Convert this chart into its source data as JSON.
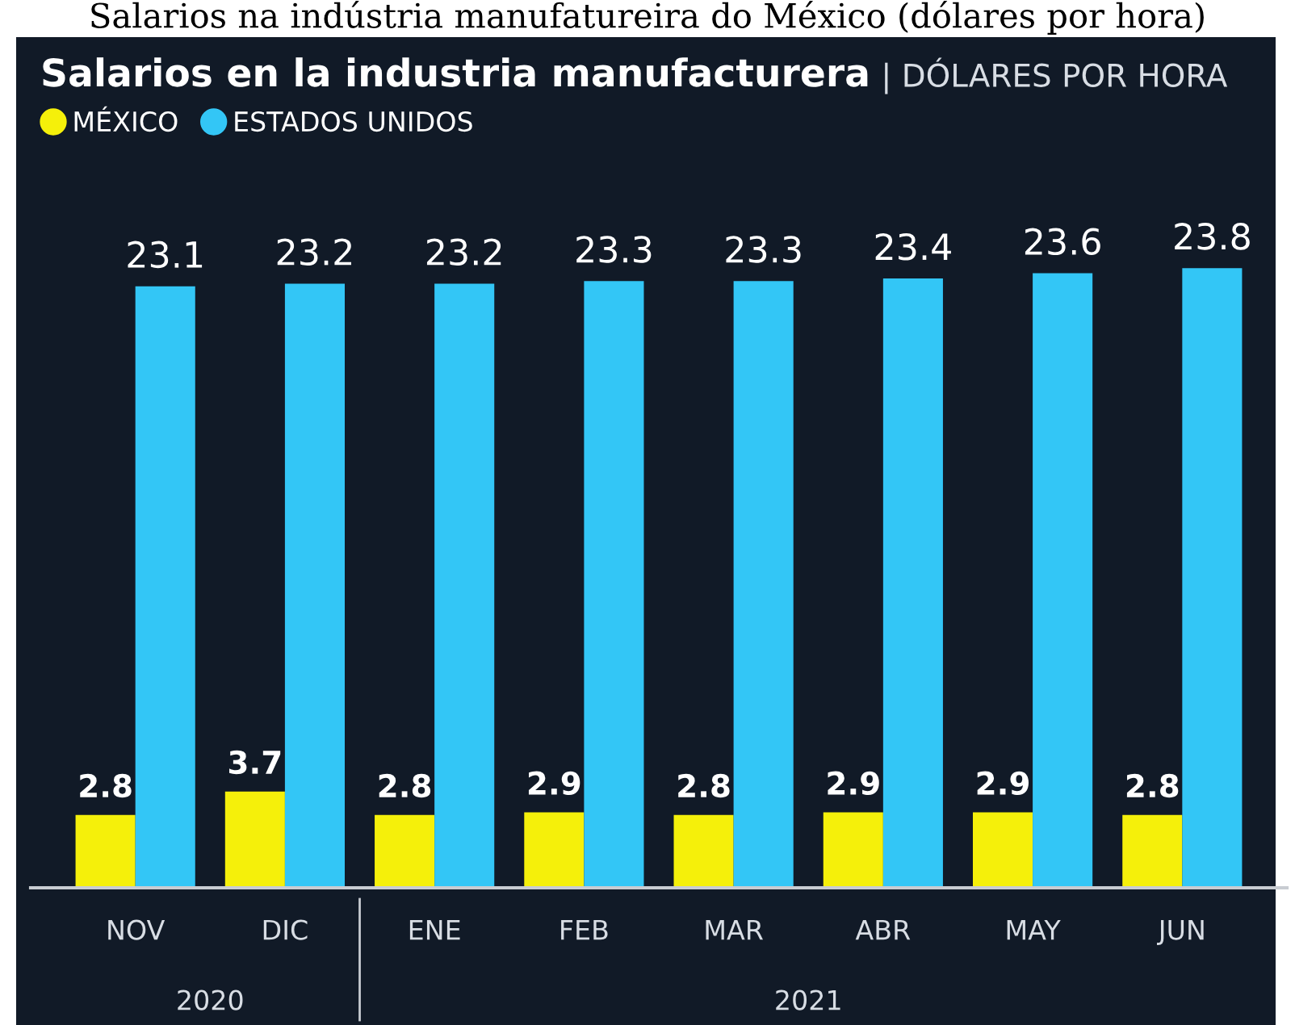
{
  "chart_data": {
    "type": "bar",
    "title": "Salarios en la industria manufacturera",
    "subtitle": "| DÓLARES POR HORA",
    "categories": [
      "NOV",
      "DIC",
      "ENE",
      "FEB",
      "MAR",
      "ABR",
      "MAY",
      "JUN"
    ],
    "series": [
      {
        "name": "MÉXICO",
        "color": "#f5f00a",
        "values": [
          2.8,
          3.7,
          2.8,
          2.9,
          2.8,
          2.9,
          2.9,
          2.8
        ]
      },
      {
        "name": "ESTADOS UNIDOS",
        "color": "#33c6f6",
        "values": [
          23.1,
          23.2,
          23.2,
          23.3,
          23.3,
          23.4,
          23.6,
          23.8
        ]
      }
    ],
    "data_labels": true,
    "legend": "top left",
    "grid": false,
    "annotations": [
      "Salarios na indústria manufatureira do México (dólares por hora)",
      "2020",
      "2021"
    ]
  }
}
